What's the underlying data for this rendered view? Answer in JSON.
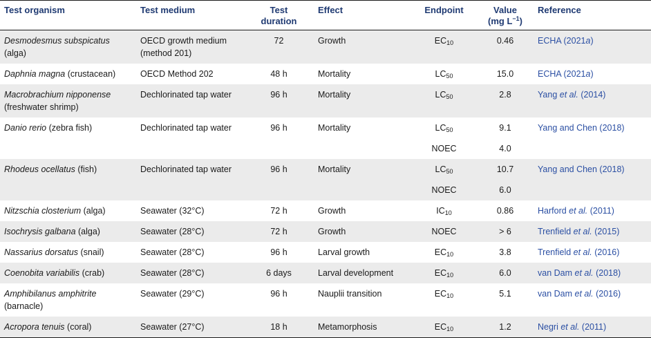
{
  "headers": {
    "organism": "Test organism",
    "medium": "Test medium",
    "duration_l1": "Test",
    "duration_l2": "duration",
    "effect": "Effect",
    "endpoint": "Endpoint",
    "value_l1": "Value",
    "value_l2_pre": "(mg L",
    "value_l2_sup": "−1",
    "value_l2_post": ")",
    "reference": "Reference"
  },
  "rows": [
    {
      "org_italic": "Desmodesmus subspicatus",
      "org_rest": " (alga)",
      "medium": "OECD growth medium (method 201)",
      "duration": "72",
      "effect": "Growth",
      "endpoints": [
        {
          "base": "EC",
          "sub": "10",
          "value": "0.46"
        }
      ],
      "ref_pre": "ECHA (2021",
      "ref_em": "a",
      "ref_post": ")",
      "shaded": true
    },
    {
      "org_italic": "Daphnia magna",
      "org_rest": " (crustacean)",
      "medium": "OECD Method 202",
      "duration": "48 h",
      "effect": "Mortality",
      "endpoints": [
        {
          "base": "LC",
          "sub": "50",
          "value": "15.0"
        }
      ],
      "ref_pre": "ECHA (2021",
      "ref_em": "a",
      "ref_post": ")",
      "shaded": false
    },
    {
      "org_italic": "Macrobrachium nipponense",
      "org_rest": " (freshwater shrimp)",
      "medium": "Dechlorinated tap water",
      "duration": "96 h",
      "effect": "Mortality",
      "endpoints": [
        {
          "base": "LC",
          "sub": "50",
          "value": "2.8"
        }
      ],
      "ref_pre": "Yang ",
      "ref_em": "et al.",
      "ref_post": " (2014)",
      "shaded": true
    },
    {
      "org_italic": "Danio rerio",
      "org_rest": " (zebra fish)",
      "medium": "Dechlorinated tap water",
      "duration": "96 h",
      "effect": "Mortality",
      "endpoints": [
        {
          "base": "LC",
          "sub": "50",
          "value": "9.1"
        },
        {
          "base": "NOEC",
          "sub": "",
          "value": "4.0"
        }
      ],
      "ref_pre": "Yang and Chen (2018)",
      "ref_em": "",
      "ref_post": "",
      "shaded": false
    },
    {
      "org_italic": "Rhodeus ocellatus",
      "org_rest": " (fish)",
      "medium": "Dechlorinated tap water",
      "duration": "96 h",
      "effect": "Mortality",
      "endpoints": [
        {
          "base": "LC",
          "sub": "50",
          "value": "10.7"
        },
        {
          "base": "NOEC",
          "sub": "",
          "value": "6.0"
        }
      ],
      "ref_pre": "Yang and Chen (2018)",
      "ref_em": "",
      "ref_post": "",
      "shaded": true
    },
    {
      "org_italic": "Nitzschia closterium",
      "org_rest": " (alga)",
      "medium": "Seawater (32°C)",
      "duration": "72 h",
      "effect": "Growth",
      "endpoints": [
        {
          "base": "IC",
          "sub": "10",
          "value": "0.86"
        }
      ],
      "ref_pre": "Harford ",
      "ref_em": "et al.",
      "ref_post": " (2011)",
      "shaded": false
    },
    {
      "org_italic": "Isochrysis galbana",
      "org_rest": " (alga)",
      "medium": "Seawater (28°C)",
      "duration": "72 h",
      "effect": "Growth",
      "endpoints": [
        {
          "base": "NOEC",
          "sub": "",
          "value": "> 6"
        }
      ],
      "ref_pre": "Trenfield ",
      "ref_em": "et al.",
      "ref_post": " (2015)",
      "shaded": true
    },
    {
      "org_italic": "Nassarius dorsatus",
      "org_rest": " (snail)",
      "medium": "Seawater (28°C)",
      "duration": "96 h",
      "effect": "Larval growth",
      "endpoints": [
        {
          "base": "EC",
          "sub": "10",
          "value": "3.8"
        }
      ],
      "ref_pre": "Trenfield ",
      "ref_em": "et al.",
      "ref_post": " (2016)",
      "shaded": false
    },
    {
      "org_italic": "Coenobita variabilis",
      "org_rest": " (crab)",
      "medium": "Seawater (28°C)",
      "duration": "6 days",
      "effect": "Larval development",
      "endpoints": [
        {
          "base": "EC",
          "sub": "10",
          "value": "6.0"
        }
      ],
      "ref_pre": "van Dam ",
      "ref_em": "et al.",
      "ref_post": " (2018)",
      "shaded": true
    },
    {
      "org_italic": "Amphibilanus amphitrite",
      "org_rest": " (barnacle)",
      "medium": "Seawater (29°C)",
      "duration": "96 h",
      "effect": "Nauplii transition",
      "endpoints": [
        {
          "base": "EC",
          "sub": "10",
          "value": "5.1"
        }
      ],
      "ref_pre": "van Dam ",
      "ref_em": "et al.",
      "ref_post": " (2016)",
      "shaded": false
    },
    {
      "org_italic": "Acropora tenuis",
      "org_rest": " (coral)",
      "medium": "Seawater (27°C)",
      "duration": "18 h",
      "effect": "Metamorphosis",
      "endpoints": [
        {
          "base": "EC",
          "sub": "10",
          "value": "1.2"
        }
      ],
      "ref_pre": "Negri ",
      "ref_em": "et al.",
      "ref_post": " (2011)",
      "shaded": true
    }
  ]
}
